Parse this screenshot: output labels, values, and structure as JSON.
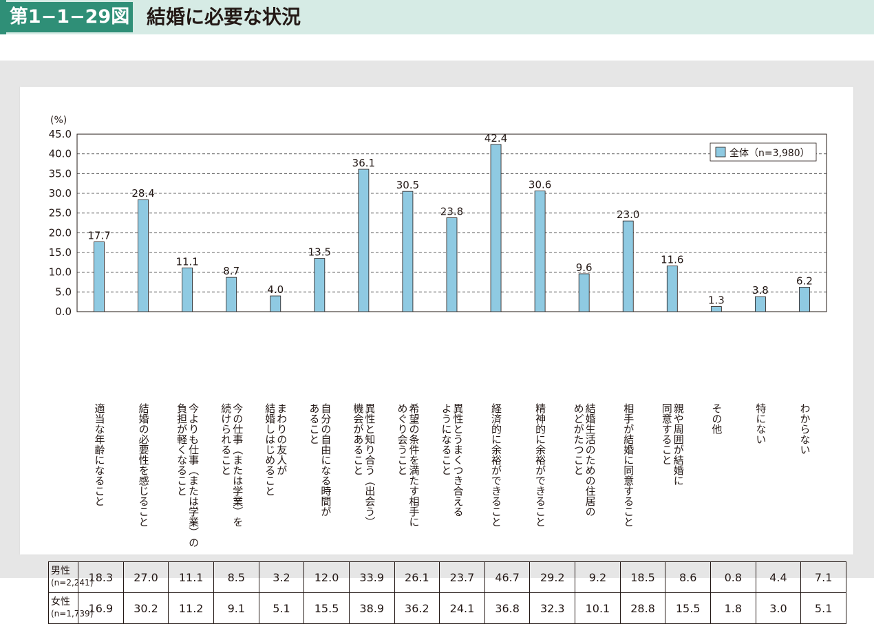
{
  "header": {
    "figure_number": "第1−1−29図",
    "title": "結婚に必要な状況"
  },
  "colors": {
    "header_bg": "#d6ebe5",
    "accent": "#2f8f77",
    "bar_fill": "#8fcae2",
    "bar_stroke": "#231815"
  },
  "chart_data": {
    "type": "bar",
    "yunit": "(%)",
    "ylim": [
      0,
      45
    ],
    "yticks": [
      "0.0",
      "5.0",
      "10.0",
      "15.0",
      "20.0",
      "25.0",
      "30.0",
      "35.0",
      "40.0",
      "45.0"
    ],
    "grid": "dashed horizontal",
    "legend_position": "top-right",
    "categories": [
      "適当な年齢になること",
      "結婚の必要性を感じること",
      "今よりも仕事（または学業）の\n負担が軽くなること",
      "今の仕事（または学業）を\n続けられること",
      "まわりの友人が\n結婚しはじめること",
      "自分の自由になる時間が\nあること",
      "異性と知り合う（出会う）\n機会があること",
      "希望の条件を満たす相手に\nめぐり会うこと",
      "異性とうまくつき合える\nようになること",
      "経済的に余裕ができること",
      "精神的に余裕ができること",
      "結婚生活のための住居の\nめどがたつこと",
      "相手が結婚に同意すること",
      "親や周囲が結婚に\n同意すること",
      "その他",
      "特にない",
      "わからない"
    ],
    "series": [
      {
        "name": "全体（n=3,980）",
        "values": [
          17.7,
          28.4,
          11.1,
          8.7,
          4.0,
          13.5,
          36.1,
          30.5,
          23.8,
          42.4,
          30.6,
          9.6,
          23.0,
          11.6,
          1.3,
          3.8,
          6.2
        ],
        "labels": [
          "17.7",
          "28.4",
          "11.1",
          "8.7",
          "4.0",
          "13.5",
          "36.1",
          "30.5",
          "23.8",
          "42.4",
          "30.6",
          "9.6",
          "23.0",
          "11.6",
          "1.3",
          "3.8",
          "6.2"
        ]
      }
    ],
    "table": {
      "rows": [
        {
          "label": "男性",
          "sub": "(n=2,241)",
          "values": [
            "18.3",
            "27.0",
            "11.1",
            "8.5",
            "3.2",
            "12.0",
            "33.9",
            "26.1",
            "23.7",
            "46.7",
            "29.2",
            "9.2",
            "18.5",
            "8.6",
            "0.8",
            "4.4",
            "7.1"
          ]
        },
        {
          "label": "女性",
          "sub": "(n=1,739)",
          "values": [
            "16.9",
            "30.2",
            "11.2",
            "9.1",
            "5.1",
            "15.5",
            "38.9",
            "36.2",
            "24.1",
            "36.8",
            "32.3",
            "10.1",
            "28.8",
            "15.5",
            "1.8",
            "3.0",
            "5.1"
          ]
        }
      ]
    }
  }
}
